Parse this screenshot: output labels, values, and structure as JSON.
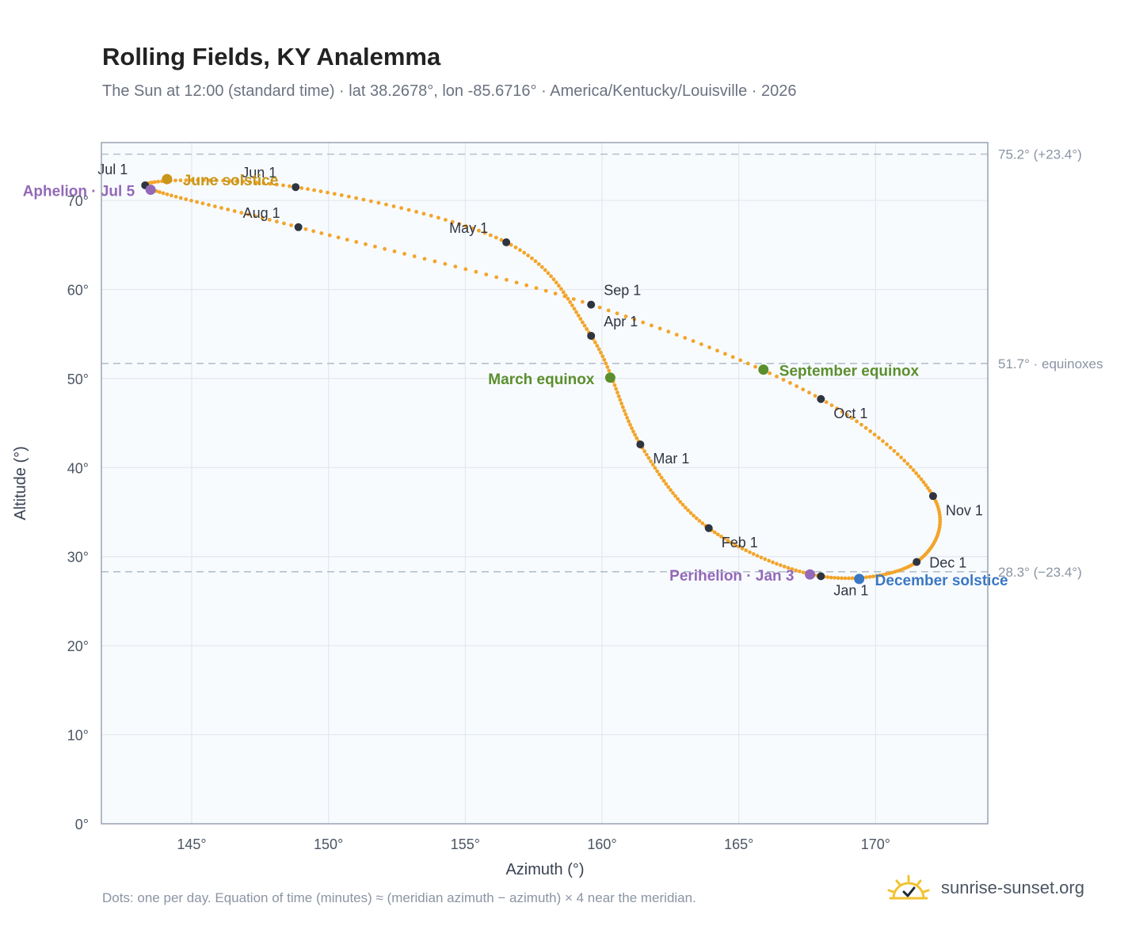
{
  "title": "Rolling Fields, KY Analemma",
  "subtitle": "The Sun at 12:00 (standard time) · lat 38.2678°, lon -85.6716° · America/Kentucky/Louisville · 2026",
  "footnote": "Dots: one per day. Equation of time (minutes) ≈ (meridian azimuth − azimuth) × 4 near the meridian.",
  "brand": {
    "name": "sunrise-sunset.org",
    "logo_icon": "sun-check-icon"
  },
  "colors": {
    "curve": "#f2a52b",
    "month_dot": "#2f3441",
    "solstice_june": "#c9961a",
    "solstice_december": "#3a78c2",
    "equinox": "#5b8f2e",
    "apsis": "#9369b8",
    "reference_line": "#b4c0cc",
    "frame": "#9aa3b2",
    "plot_bg": "#f8fbfe",
    "grid": "#e3e8ee"
  },
  "chart_data": {
    "type": "scatter",
    "xlabel": "Azimuth (°)",
    "ylabel": "Altitude (°)",
    "xlim": [
      141.7,
      174.1
    ],
    "ylim": [
      0,
      76.5
    ],
    "x_ticks": [
      145,
      150,
      155,
      160,
      165,
      170
    ],
    "x_tick_labels": [
      "145°",
      "150°",
      "155°",
      "160°",
      "165°",
      "170°"
    ],
    "y_ticks": [
      0,
      10,
      20,
      30,
      40,
      50,
      60,
      70
    ],
    "y_tick_labels": [
      "0°",
      "10°",
      "20°",
      "30°",
      "40°",
      "50°",
      "60°",
      "70°"
    ],
    "grid": true,
    "reference_lines": [
      {
        "y": 75.2,
        "label": "75.2° (+23.4°)"
      },
      {
        "y": 51.7,
        "label": "51.7° · equinoxes"
      },
      {
        "y": 28.3,
        "label": "28.3° (−23.4°)"
      }
    ],
    "month_markers": [
      {
        "label": "Jan 1",
        "az": 168.0,
        "alt": 27.8
      },
      {
        "label": "Feb 1",
        "az": 163.9,
        "alt": 33.2
      },
      {
        "label": "Mar 1",
        "az": 161.4,
        "alt": 42.6
      },
      {
        "label": "Apr 1",
        "az": 159.6,
        "alt": 54.8
      },
      {
        "label": "May 1",
        "az": 156.5,
        "alt": 65.3
      },
      {
        "label": "Jun 1",
        "az": 148.8,
        "alt": 71.5
      },
      {
        "label": "Jul 1",
        "az": 143.3,
        "alt": 71.7
      },
      {
        "label": "Aug 1",
        "az": 148.9,
        "alt": 67.0
      },
      {
        "label": "Sep 1",
        "az": 159.6,
        "alt": 58.3
      },
      {
        "label": "Oct 1",
        "az": 168.0,
        "alt": 47.7
      },
      {
        "label": "Nov 1",
        "az": 172.1,
        "alt": 36.8
      },
      {
        "label": "Dec 1",
        "az": 171.5,
        "alt": 29.4
      }
    ],
    "events": [
      {
        "label": "June solstice",
        "az": 144.1,
        "alt": 72.4,
        "kind": "solstice_june"
      },
      {
        "label": "December solstice",
        "az": 169.4,
        "alt": 27.5,
        "kind": "solstice_december"
      },
      {
        "label": "March equinox",
        "az": 160.3,
        "alt": 50.1,
        "kind": "equinox"
      },
      {
        "label": "September equinox",
        "az": 165.9,
        "alt": 51.0,
        "kind": "equinox"
      },
      {
        "label": "Aphelion · Jul 5",
        "az": 143.5,
        "alt": 71.2,
        "kind": "apsis"
      },
      {
        "label": "Perihelion · Jan 3",
        "az": 167.6,
        "alt": 28.0,
        "kind": "apsis"
      }
    ]
  }
}
